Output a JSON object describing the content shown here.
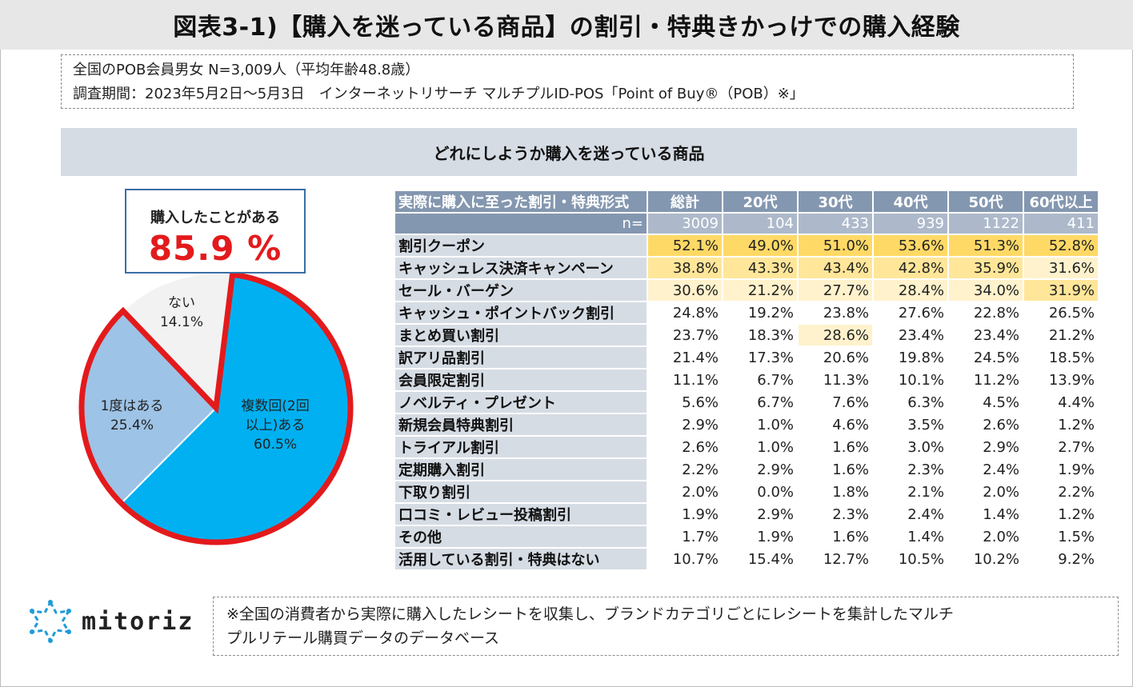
{
  "title": "図表3-1)【購入を迷っている商品】の割引・特典きかっけでの購入経験",
  "meta": {
    "line1": "全国のPOB会員男女 N=3,009人（平均年齢48.8歳）",
    "line2": "調査期間：2023年5月2日～5月3日　インターネットリサーチ マルチプルID-POS「Point of Buy®（POB）※」"
  },
  "section_title": "どれにしようか購入を迷っている商品",
  "callout": {
    "label": "購入したことがある",
    "value": "85.9 %"
  },
  "colors": {
    "multi": "#00b0f0",
    "once": "#9dc3e6",
    "none": "#f2f2f2",
    "outline": "#e31a1c"
  },
  "chart_data": [
    {
      "type": "pie",
      "title": "",
      "slices": [
        {
          "name": "複数回(2回以上)ある",
          "label_line1": "複数回(2回",
          "label_line2": "以上)ある",
          "value": 60.5,
          "value_label": "60.5%"
        },
        {
          "name": "1度はある",
          "label_line1": "1度はある",
          "value": 25.4,
          "value_label": "25.4%"
        },
        {
          "name": "ない",
          "label_line1": "ない",
          "value": 14.1,
          "value_label": "14.1%"
        }
      ],
      "highlighted_total": 85.9
    },
    {
      "type": "table",
      "header_label": "実際に購入に至った割引・特典形式",
      "n_label": "n=",
      "columns": [
        "総計",
        "20代",
        "30代",
        "40代",
        "50代",
        "60代以上"
      ],
      "n": [
        "3009",
        "104",
        "433",
        "939",
        "1122",
        "411"
      ],
      "rows": [
        {
          "label": "割引クーポン",
          "values": [
            "52.1%",
            "49.0%",
            "51.0%",
            "53.6%",
            "51.3%",
            "52.8%"
          ]
        },
        {
          "label": "キャッシュレス決済キャンペーン",
          "values": [
            "38.8%",
            "43.3%",
            "43.4%",
            "42.8%",
            "35.9%",
            "31.6%"
          ]
        },
        {
          "label": "セール・バーゲン",
          "values": [
            "30.6%",
            "21.2%",
            "27.7%",
            "28.4%",
            "34.0%",
            "31.9%"
          ]
        },
        {
          "label": "キャッシュ・ポイントバック割引",
          "values": [
            "24.8%",
            "19.2%",
            "23.8%",
            "27.6%",
            "22.8%",
            "26.5%"
          ]
        },
        {
          "label": "まとめ買い割引",
          "values": [
            "23.7%",
            "18.3%",
            "28.6%",
            "23.4%",
            "23.4%",
            "21.2%"
          ]
        },
        {
          "label": "訳アリ品割引",
          "values": [
            "21.4%",
            "17.3%",
            "20.6%",
            "19.8%",
            "24.5%",
            "18.5%"
          ]
        },
        {
          "label": "会員限定割引",
          "values": [
            "11.1%",
            "6.7%",
            "11.3%",
            "10.1%",
            "11.2%",
            "13.9%"
          ]
        },
        {
          "label": "ノベルティ・プレゼント",
          "values": [
            "5.6%",
            "6.7%",
            "7.6%",
            "6.3%",
            "4.5%",
            "4.4%"
          ]
        },
        {
          "label": "新規会員特典割引",
          "values": [
            "2.9%",
            "1.0%",
            "4.6%",
            "3.5%",
            "2.6%",
            "1.2%"
          ]
        },
        {
          "label": "トライアル割引",
          "values": [
            "2.6%",
            "1.0%",
            "1.6%",
            "3.0%",
            "2.9%",
            "2.7%"
          ]
        },
        {
          "label": "定期購入割引",
          "values": [
            "2.2%",
            "2.9%",
            "1.6%",
            "2.3%",
            "2.4%",
            "1.9%"
          ]
        },
        {
          "label": "下取り割引",
          "values": [
            "2.0%",
            "0.0%",
            "1.8%",
            "2.1%",
            "2.0%",
            "2.2%"
          ]
        },
        {
          "label": "口コミ・レビュー投稿割引",
          "values": [
            "1.9%",
            "2.9%",
            "2.3%",
            "2.4%",
            "1.4%",
            "1.2%"
          ]
        },
        {
          "label": "その他",
          "values": [
            "1.7%",
            "1.9%",
            "1.6%",
            "1.4%",
            "2.0%",
            "1.5%"
          ]
        },
        {
          "label": "活用している割引・特典はない",
          "values": [
            "10.7%",
            "15.4%",
            "12.7%",
            "10.5%",
            "10.2%",
            "9.2%"
          ]
        }
      ]
    }
  ],
  "logo": {
    "name": "mitoriz"
  },
  "footnote": {
    "line1": "※全国の消費者から実際に購入したレシートを収集し、ブランドカテゴリごとにレシートを集計したマルチ",
    "line2": "プルリテール購買データのデータベース"
  }
}
